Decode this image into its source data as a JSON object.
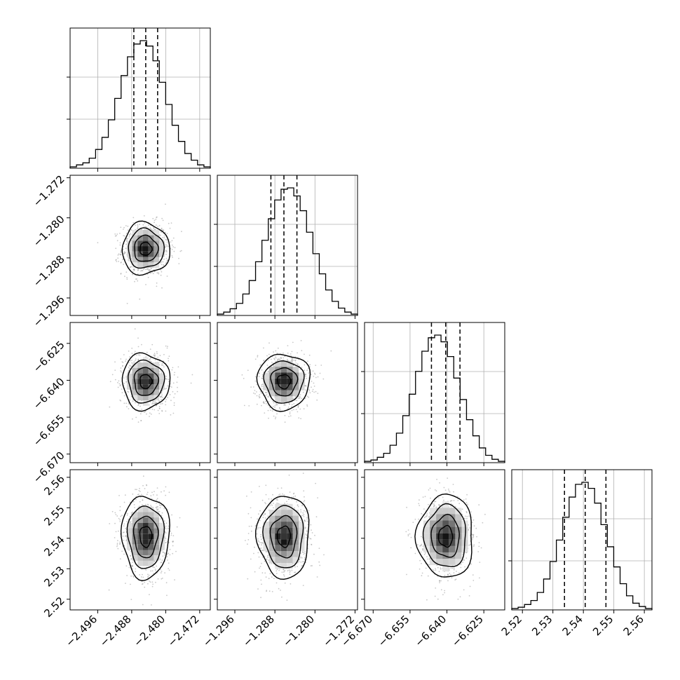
{
  "chart_data": {
    "type": "corner",
    "n_params": 4,
    "params": [
      {
        "range": [
          -2.5025,
          -2.4695
        ],
        "ticks": [
          -2.496,
          -2.488,
          -2.48,
          -2.472
        ],
        "tick_labels": [
          "−2.496",
          "−2.488",
          "−2.480",
          "−2.472"
        ],
        "quantiles": [
          -2.4875,
          -2.4847,
          -2.4819
        ],
        "mean": -2.4847,
        "sd": 0.0028
      },
      {
        "range": [
          -1.2995,
          -1.2715
        ],
        "ticks": [
          -1.296,
          -1.288,
          -1.28,
          -1.272
        ],
        "tick_labels": [
          "−1.296",
          "−1.288",
          "−1.280",
          "−1.272"
        ],
        "quantiles": [
          -1.2888,
          -1.2862,
          -1.2836
        ],
        "mean": -1.2862,
        "sd": 0.0026
      },
      {
        "range": [
          -6.6735,
          -6.6165
        ],
        "ticks": [
          -6.67,
          -6.655,
          -6.64,
          -6.625
        ],
        "tick_labels": [
          "−6.670",
          "−6.655",
          "−6.640",
          "−6.625"
        ],
        "quantiles": [
          -6.6463,
          -6.6405,
          -6.6347
        ],
        "mean": -6.6405,
        "sd": 0.0057
      },
      {
        "range": [
          2.5165,
          2.5625
        ],
        "ticks": [
          2.52,
          2.53,
          2.54,
          2.55,
          2.56
        ],
        "tick_labels": [
          "2.52",
          "2.53",
          "2.54",
          "2.55",
          "2.56"
        ],
        "quantiles": [
          2.5338,
          2.5406,
          2.5474
        ],
        "mean": 2.5406,
        "sd": 0.0068
      }
    ],
    "histograms": [
      [
        2,
        5,
        8,
        15,
        28,
        46,
        72,
        104,
        138,
        166,
        185,
        190,
        182,
        160,
        128,
        95,
        64,
        40,
        22,
        12,
        5,
        2
      ],
      [
        2,
        5,
        10,
        18,
        32,
        52,
        80,
        112,
        144,
        172,
        188,
        190,
        178,
        156,
        124,
        92,
        62,
        38,
        21,
        11,
        5,
        2
      ],
      [
        2,
        4,
        8,
        14,
        26,
        44,
        70,
        102,
        136,
        166,
        186,
        190,
        180,
        158,
        126,
        94,
        64,
        40,
        22,
        11,
        5,
        2
      ],
      [
        2,
        4,
        8,
        14,
        26,
        46,
        72,
        104,
        138,
        168,
        187,
        190,
        181,
        159,
        127,
        94,
        64,
        39,
        21,
        10,
        5,
        2
      ]
    ],
    "histogram_peak": 190,
    "contour_levels_sigma": [
      0.5,
      1.0,
      1.5,
      2.0
    ],
    "grid": true
  }
}
